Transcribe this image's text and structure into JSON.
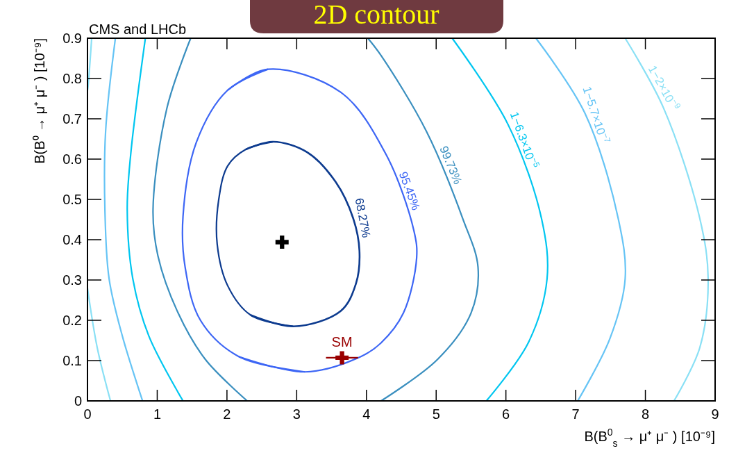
{
  "chart_data": {
    "type": "line",
    "title": "2D contour",
    "xlabel": "B(B$^{0}$$_{s}$ → μ⁺ μ⁻ ) [10⁻⁹]",
    "ylabel": "B(B⁰ → μ⁺ μ⁻ ) [10⁻⁹]",
    "annotations": [
      "CMS and LHCb"
    ],
    "xlim": [
      0,
      9
    ],
    "xticks": [
      0,
      1,
      2,
      3,
      4,
      5,
      6,
      7,
      8,
      9
    ],
    "ylim": [
      0,
      0.9
    ],
    "yticks": [
      0,
      0.1,
      0.2,
      0.3,
      0.4,
      0.5,
      0.6,
      0.7,
      0.8,
      0.9
    ],
    "grid": false,
    "marker": "none",
    "line_style": "solid",
    "series": [
      {
        "name": "68.27%",
        "color": "#0d3b8f",
        "x": [
          2.27,
          2.66,
          3.15,
          3.56,
          3.81,
          3.9,
          3.85,
          3.63,
          2.95,
          2.34
        ],
        "values": [
          0.624,
          0.643,
          0.617,
          0.543,
          0.453,
          0.372,
          0.291,
          0.223,
          0.185,
          0.213
        ]
      },
      {
        "color": "#0d3b8f",
        "x": [
          2.95,
          2.34,
          2.01,
          1.86,
          1.88,
          2.01,
          2.27,
          2.66
        ],
        "values": [
          0.185,
          0.213,
          0.286,
          0.389,
          0.497,
          0.583,
          0.624,
          0.643
        ]
      },
      {
        "name": "95.45%",
        "color": "#3d66f5",
        "x": [
          2.01,
          2.59,
          3.63,
          4.28,
          4.68,
          4.72,
          4.53,
          4.21,
          3.92,
          3.12,
          2.17
        ],
        "values": [
          0.771,
          0.823,
          0.766,
          0.612,
          0.423,
          0.355,
          0.218,
          0.144,
          0.11,
          0.072,
          0.11
        ]
      },
      {
        "color": "#3d66f5",
        "x": [
          3.12,
          2.17,
          1.62,
          1.4,
          1.37,
          1.56,
          2.01,
          2.59
        ],
        "values": [
          0.072,
          0.11,
          0.2,
          0.332,
          0.458,
          0.641,
          0.771,
          0.823
        ]
      },
      {
        "name": "99.73%",
        "color": "#3a8fbf",
        "x": [
          4.02,
          4.21,
          4.86,
          5.38,
          5.6,
          5.5,
          5.02,
          4.21
        ],
        "values": [
          0.9,
          0.857,
          0.669,
          0.453,
          0.332,
          0.218,
          0.103,
          0
        ]
      },
      {
        "color": "#3a8fbf",
        "x": [
          1.48,
          1.14,
          0.94,
          1.01,
          1.3,
          1.69,
          2.29
        ],
        "values": [
          0.9,
          0.727,
          0.475,
          0.36,
          0.218,
          0.103,
          0
        ]
      },
      {
        "name": "1−6.3×10$^{−5}$",
        "color": "#00c6f0",
        "x": [
          5.23,
          6.03,
          6.51,
          6.59,
          6.32,
          5.72
        ],
        "values": [
          0.9,
          0.686,
          0.453,
          0.303,
          0.144,
          0
        ]
      },
      {
        "color": "#00c6f0",
        "x": [
          0.83,
          0.62,
          0.57,
          0.65,
          0.88,
          1.37
        ],
        "values": [
          0.9,
          0.612,
          0.475,
          0.303,
          0.161,
          0
        ]
      },
      {
        "name": "1−5.7×10$^{−7}$",
        "color": "#66c4f5",
        "x": [
          6.43,
          7.13,
          7.61,
          7.71,
          7.49,
          7.03
        ],
        "values": [
          0.9,
          0.715,
          0.453,
          0.303,
          0.154,
          0
        ]
      },
      {
        "color": "#66c4f5",
        "x": [
          0.4,
          0.26,
          0.25,
          0.31,
          0.5,
          0.79
        ],
        "values": [
          0.9,
          0.669,
          0.475,
          0.303,
          0.161,
          0
        ]
      },
      {
        "name": "1−2×10$^{−9}$",
        "color": "#8ae0f5",
        "x": [
          7.71,
          8.26,
          8.78,
          8.9,
          8.78,
          8.41
        ],
        "values": [
          0.9,
          0.727,
          0.453,
          0.303,
          0.132,
          0
        ]
      },
      {
        "color": "#8ae0f5",
        "x": [
          0.06,
          0.01,
          0
        ],
        "values": [
          0.9,
          0.783,
          0.77
        ]
      },
      {
        "color": "#8ae0f5",
        "x": [
          0,
          0.14,
          0.33
        ],
        "values": [
          0.28,
          0.132,
          0
        ]
      },
      {
        "type": "scatter",
        "color": "#000000",
        "marker": "cross",
        "x": [
          2.79
        ],
        "values": [
          0.394
        ]
      },
      {
        "type": "scatter",
        "name": "SM",
        "color": "#990000",
        "marker": "cross",
        "x": [
          3.65
        ],
        "values": [
          0.107
        ],
        "xerrors": [
          0.23
        ],
        "errors": [
          0.01
        ]
      }
    ]
  }
}
